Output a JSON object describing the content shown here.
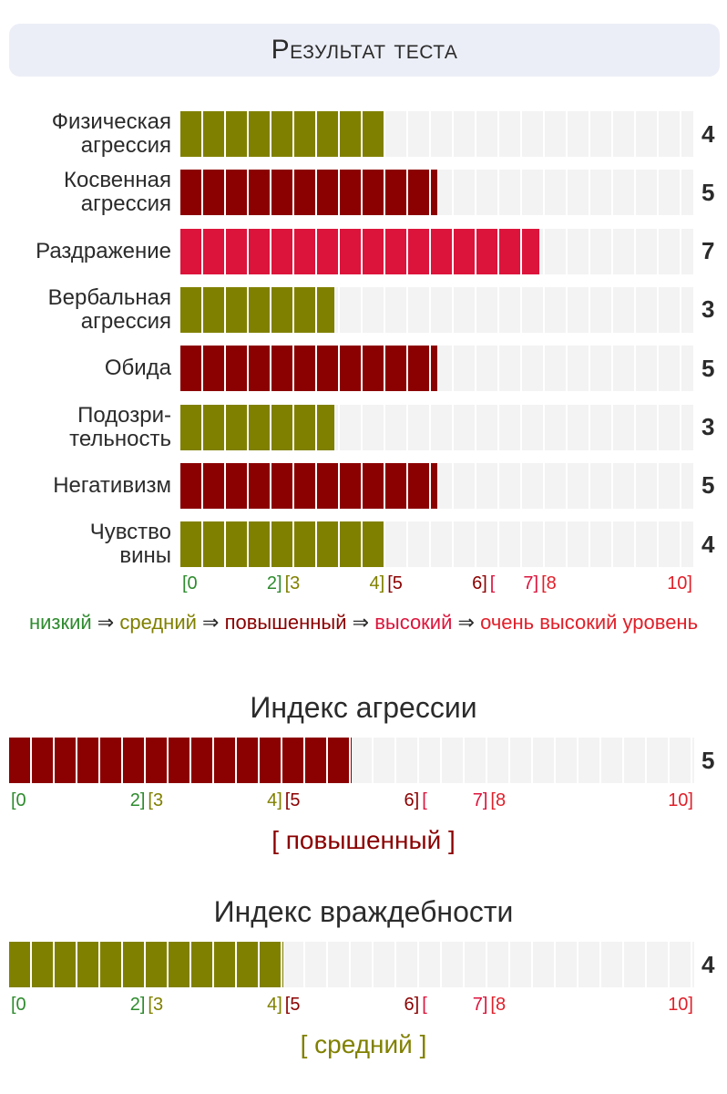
{
  "title": "Результат теста",
  "chart_data": [
    {
      "type": "bar",
      "orientation": "horizontal",
      "xlim": [
        0,
        10
      ],
      "categories": [
        "Физическая\nагрессия",
        "Косвенная\nагрессия",
        "Раздражение",
        "Вербальная\nагрессия",
        "Обида",
        "Подозри-\nтельность",
        "Негативизм",
        "Чувство\nвины"
      ],
      "values": [
        4,
        5,
        7,
        3,
        5,
        3,
        5,
        4
      ],
      "value_labels": [
        "4",
        "5",
        "7",
        "3",
        "5",
        "3",
        "5",
        "4"
      ],
      "bar_colors": [
        "#808000",
        "#8b0000",
        "#dc143c",
        "#808000",
        "#8b0000",
        "#808000",
        "#8b0000",
        "#808000"
      ],
      "scale_labels": [
        {
          "text": "[0",
          "pos": 0,
          "color": "#2e8b2e"
        },
        {
          "text": "2]",
          "pos": 2,
          "color": "#2e8b2e"
        },
        {
          "text": "[3",
          "pos": 2,
          "color": "#808000"
        },
        {
          "text": "4]",
          "pos": 4,
          "color": "#808000"
        },
        {
          "text": "[5",
          "pos": 4,
          "color": "#8b0000"
        },
        {
          "text": "6]",
          "pos": 6,
          "color": "#8b0000"
        },
        {
          "text": "[",
          "pos": 6,
          "color": "#dc143c"
        },
        {
          "text": "7]",
          "pos": 7,
          "color": "#dc143c"
        },
        {
          "text": "[8",
          "pos": 7,
          "color": "#e0202a"
        },
        {
          "text": "10]",
          "pos": 10,
          "color": "#e0202a"
        }
      ]
    },
    {
      "type": "bar",
      "orientation": "horizontal",
      "title": "Индекс агрессии",
      "xlim": [
        0,
        10
      ],
      "values": [
        5
      ],
      "value_labels": [
        "5"
      ],
      "bar_colors": [
        "#8b0000"
      ],
      "level_text": "[ повышенный ]",
      "level_color": "#8b0000",
      "scale_labels": [
        {
          "text": "[0",
          "pos": 0,
          "color": "#2e8b2e"
        },
        {
          "text": "2]",
          "pos": 2,
          "color": "#2e8b2e"
        },
        {
          "text": "[3",
          "pos": 2,
          "color": "#808000"
        },
        {
          "text": "4]",
          "pos": 4,
          "color": "#808000"
        },
        {
          "text": "[5",
          "pos": 4,
          "color": "#8b0000"
        },
        {
          "text": "6]",
          "pos": 6,
          "color": "#8b0000"
        },
        {
          "text": "[",
          "pos": 6,
          "color": "#dc143c"
        },
        {
          "text": "7]",
          "pos": 7,
          "color": "#dc143c"
        },
        {
          "text": "[8",
          "pos": 7,
          "color": "#e0202a"
        },
        {
          "text": "10]",
          "pos": 10,
          "color": "#e0202a"
        }
      ]
    },
    {
      "type": "bar",
      "orientation": "horizontal",
      "title": "Индекс враждебности",
      "xlim": [
        0,
        10
      ],
      "values": [
        4
      ],
      "value_labels": [
        "4"
      ],
      "bar_colors": [
        "#808000"
      ],
      "level_text": "[ средний ]",
      "level_color": "#808000",
      "scale_labels": [
        {
          "text": "[0",
          "pos": 0,
          "color": "#2e8b2e"
        },
        {
          "text": "2]",
          "pos": 2,
          "color": "#2e8b2e"
        },
        {
          "text": "[3",
          "pos": 2,
          "color": "#808000"
        },
        {
          "text": "4]",
          "pos": 4,
          "color": "#808000"
        },
        {
          "text": "[5",
          "pos": 4,
          "color": "#8b0000"
        },
        {
          "text": "6]",
          "pos": 6,
          "color": "#8b0000"
        },
        {
          "text": "[",
          "pos": 6,
          "color": "#dc143c"
        },
        {
          "text": "7]",
          "pos": 7,
          "color": "#dc143c"
        },
        {
          "text": "[8",
          "pos": 7,
          "color": "#e0202a"
        },
        {
          "text": "10]",
          "pos": 10,
          "color": "#e0202a"
        }
      ]
    }
  ],
  "legend": {
    "items": [
      {
        "text": "низкий",
        "color": "#2e8b2e"
      },
      {
        "text": "средний",
        "color": "#808000"
      },
      {
        "text": "повышенный",
        "color": "#8b0000"
      },
      {
        "text": "высокий",
        "color": "#dc143c"
      },
      {
        "text": "очень высокий уровень",
        "color": "#e0202a"
      }
    ],
    "arrow": "⇒"
  }
}
